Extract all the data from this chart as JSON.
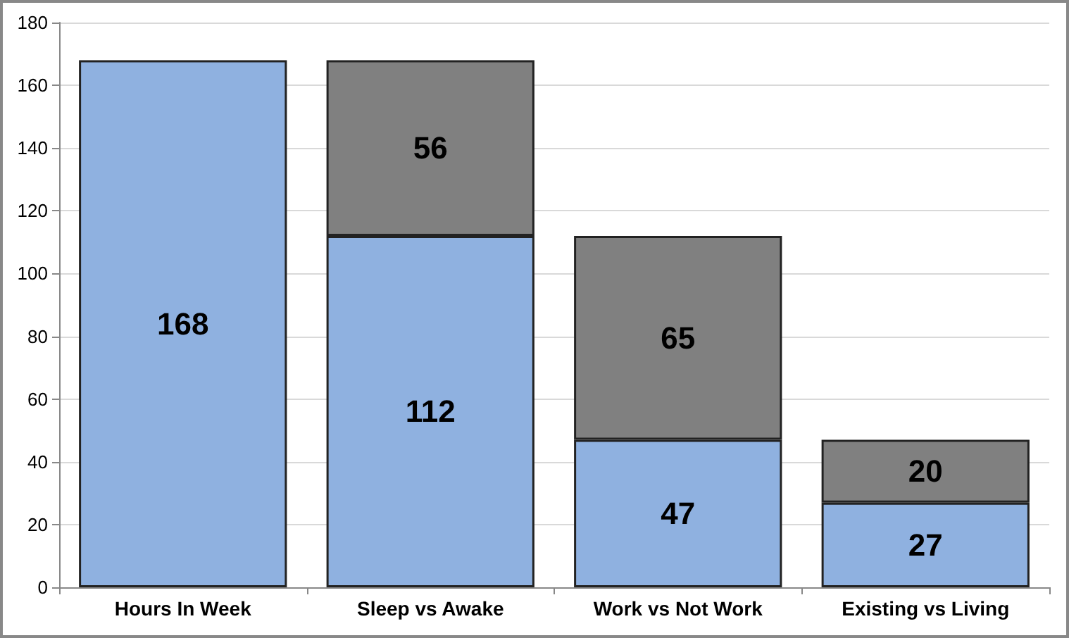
{
  "chart_data": {
    "type": "bar",
    "stacked": true,
    "categories": [
      "Hours In Week",
      "Sleep vs Awake",
      "Work vs Not Work",
      "Existing vs Living"
    ],
    "series": [
      {
        "color": "#8fb1e0",
        "values": [
          168,
          112,
          47,
          27
        ]
      },
      {
        "color": "#808080",
        "values": [
          null,
          56,
          65,
          20
        ]
      }
    ],
    "ylim": [
      0,
      180
    ],
    "yticks": [
      0,
      20,
      40,
      60,
      80,
      100,
      120,
      140,
      160,
      180
    ],
    "grid": "y",
    "data_labels": true
  }
}
